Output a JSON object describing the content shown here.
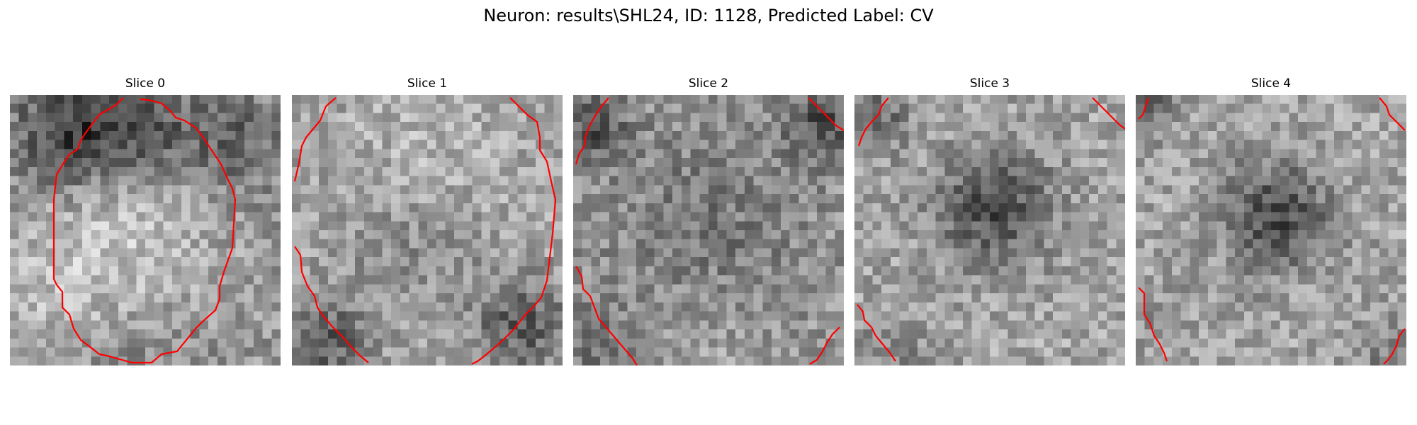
{
  "title": "Neuron: results\\SHL24, ID: 1128, Predicted Label: CV",
  "colormap": "gray",
  "contour_color": "#ff0000",
  "slices": [
    {
      "title": "Slice 0"
    },
    {
      "title": "Slice 1"
    },
    {
      "title": "Slice 2"
    },
    {
      "title": "Slice 3"
    },
    {
      "title": "Slice 4"
    }
  ]
}
